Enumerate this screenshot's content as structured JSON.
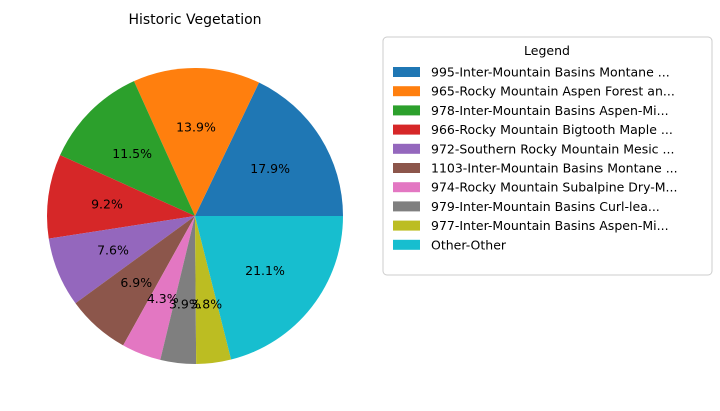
{
  "chart_data": {
    "type": "pie",
    "title": "Historic Vegetation",
    "legend_title": "Legend",
    "legend_placement": "right",
    "start_angle_deg": 0,
    "direction": "counterclockwise",
    "slices": [
      {
        "label": "995-Inter-Mountain Basins Montane ...",
        "value": 17.9,
        "pct_label": "17.9%",
        "color": "#1f77b4"
      },
      {
        "label": "965-Rocky Mountain Aspen Forest an...",
        "value": 13.9,
        "pct_label": "13.9%",
        "color": "#ff7f0e"
      },
      {
        "label": "978-Inter-Mountain Basins Aspen-Mi...",
        "value": 11.5,
        "pct_label": "11.5%",
        "color": "#2ca02c"
      },
      {
        "label": "966-Rocky Mountain Bigtooth Maple ...",
        "value": 9.2,
        "pct_label": "9.2%",
        "color": "#d62728"
      },
      {
        "label": "972-Southern Rocky Mountain Mesic ...",
        "value": 7.6,
        "pct_label": "7.6%",
        "color": "#9467bd"
      },
      {
        "label": "1103-Inter-Mountain Basins Montane ...",
        "value": 6.9,
        "pct_label": "6.9%",
        "color": "#8c564b"
      },
      {
        "label": "974-Rocky Mountain Subalpine Dry-M...",
        "value": 4.3,
        "pct_label": "4.3%",
        "color": "#e377c2"
      },
      {
        "label": "979-Inter-Mountain Basins Curl-lea...",
        "value": 3.9,
        "pct_label": "3.9%",
        "color": "#7f7f7f"
      },
      {
        "label": "977-Inter-Mountain Basins Aspen-Mi...",
        "value": 3.8,
        "pct_label": "3.8%",
        "color": "#bcbd22"
      },
      {
        "label": "Other-Other",
        "value": 21.1,
        "pct_label": "21.1%",
        "color": "#17becf"
      }
    ]
  }
}
